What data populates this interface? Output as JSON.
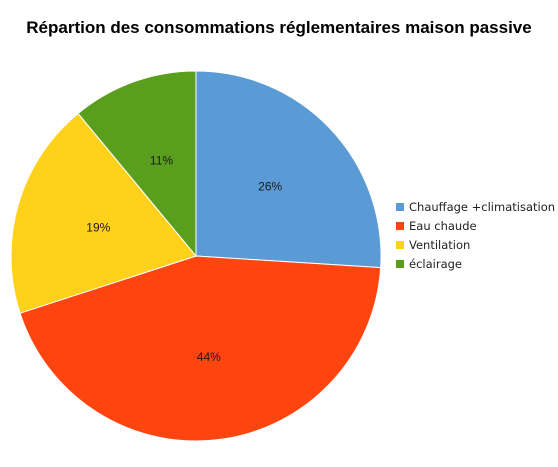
{
  "chart_data": {
    "type": "pie",
    "title": "Répartion des consommations réglementaires maison passive",
    "categories": [
      "Chauffage +climatisation",
      "Eau chaude",
      "Ventilation",
      "éclairage"
    ],
    "values": [
      26,
      44,
      19,
      11
    ],
    "labels": [
      "26%",
      "44%",
      "19%",
      "11%"
    ],
    "colors": [
      "#5b9bd5",
      "#ff450f",
      "#ffd11a",
      "#5a9e1e"
    ],
    "start_angle_deg": 0,
    "direction": "clockwise",
    "legend_position": "right"
  }
}
